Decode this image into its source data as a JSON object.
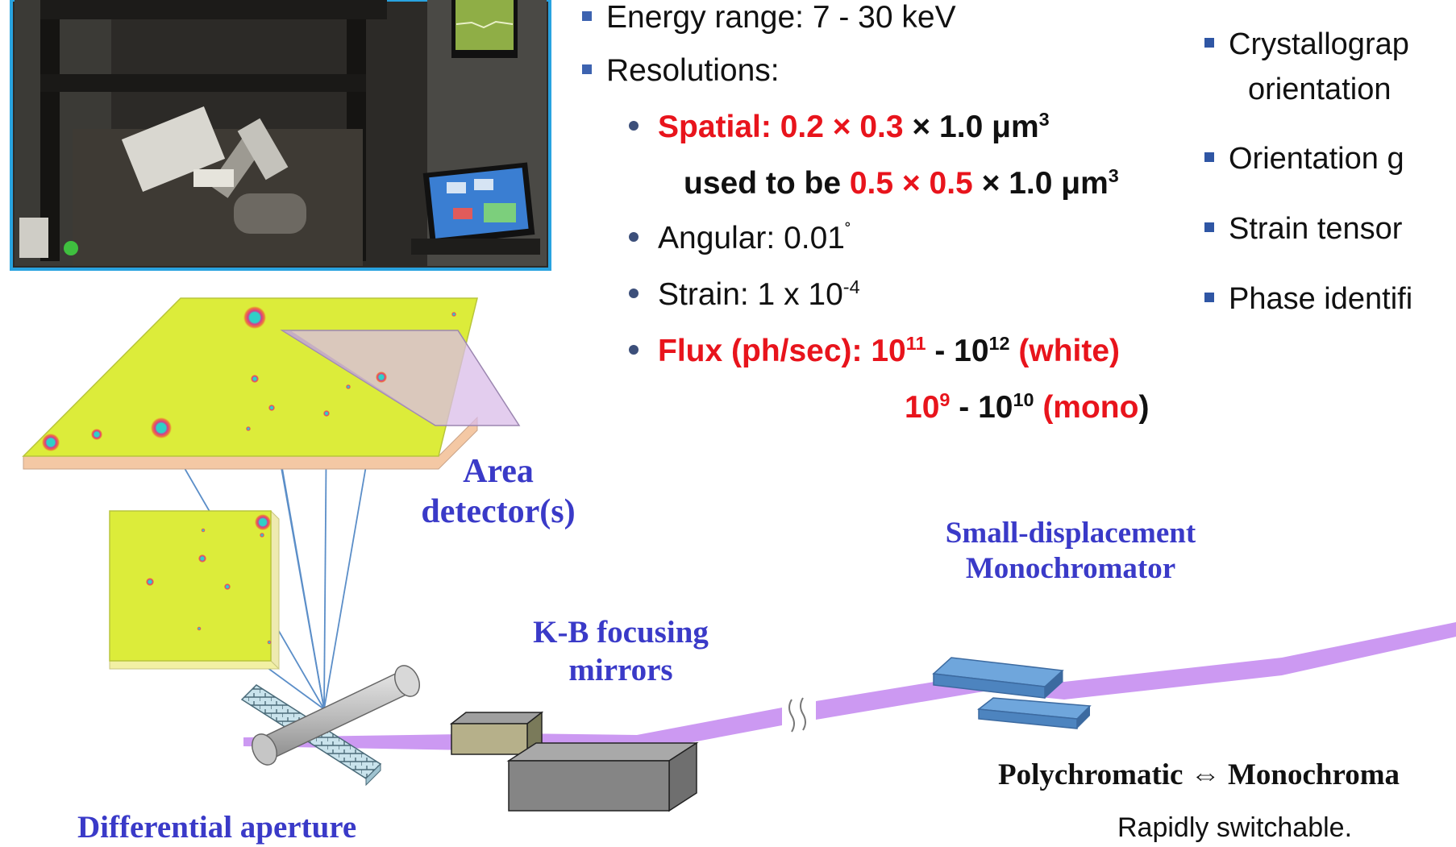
{
  "specs": {
    "energy": "Energy range:  7 - 30 keV",
    "resolutions": "Resolutions:",
    "spatial_label": "Spatial: ",
    "spatial_red": "0.2 × 0.3",
    "spatial_rest": " × 1.0 μm",
    "used_prefix": "used to be ",
    "used_red": "0.5 × 0.5",
    "used_rest": " × 1.0 μm",
    "cube": "3",
    "angular": "Angular: 0.01",
    "angular_deg": "˚",
    "strain": "Strain: 1 x 10",
    "strain_exp": "-4",
    "flux_label": "Flux (ph/sec):  ",
    "flux_w_base1": "10",
    "flux_w_exp1": "11",
    "flux_w_sep": " - 10",
    "flux_w_exp2": "12",
    "flux_w_tag": " (white)",
    "flux_m_base1": "10",
    "flux_m_exp1": "9",
    "flux_m_sep": " - 10",
    "flux_m_exp2": "10",
    "flux_m_tag_open": " (mono",
    "flux_m_tag_close": ")"
  },
  "capabilities": [
    "Crystallograp",
    "orientation",
    "Orientation g",
    "Strain tensor",
    "Phase identifi"
  ],
  "labels": {
    "area_detector_1": "Area",
    "area_detector_2": "detector(s)",
    "monochromator_1": "Small-displacement",
    "monochromator_2": "Monochromator",
    "kb_1": "K-B focusing",
    "kb_2": "mirrors",
    "poly_mono": "Polychromatic ⇔ Monochroma",
    "switchable": "Rapidly switchable.",
    "aperture": "Differential aperture"
  },
  "colors": {
    "beam": "#cc99f2",
    "accent_red": "#e8141c",
    "label_blue": "#3a3ac8",
    "detector_yellow": "#dcec3a",
    "mirror_gray": "#808080",
    "mono_blue": "#5b93cc",
    "photo_border": "#29a3e0"
  }
}
